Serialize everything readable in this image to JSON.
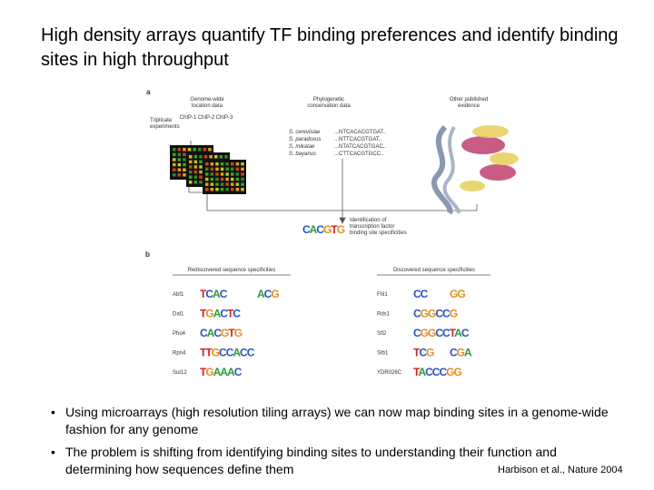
{
  "title": "High density arrays quantify TF binding preferences and identify binding sites in high throughput",
  "figure": {
    "panel_a": {
      "label": "a",
      "location_header": [
        "Genome-wide",
        "location data"
      ],
      "conservation_header": [
        "Phylogenetic",
        "conservation data"
      ],
      "evidence_header": [
        "Other published",
        "evidence"
      ],
      "triplicate": [
        "Triplicate",
        "experiments"
      ],
      "chips": [
        "ChIP-1",
        "ChIP-2",
        "ChIP-3"
      ],
      "species": [
        "S. cerevisiae",
        "S. paradoxus",
        "S. mikatae",
        "S. bayanus"
      ],
      "sequences": [
        "...NTCACACGTGAT..",
        "...NTTCACGTGAT..",
        "...NTATCACGTGAC..",
        "...CTTCACGTGCC.."
      ],
      "identification": [
        "Identification of",
        "transcription factor",
        "binding site specificities"
      ],
      "logo": "CACGTG"
    },
    "panel_b": {
      "label": "b",
      "rediscovered_header": "Rediscovered sequence specificities",
      "discovered_header": "Discovered sequence specificities",
      "rediscovered": [
        {
          "name": "Abf1",
          "logos": [
            "TCAC",
            "ACG"
          ]
        },
        {
          "name": "Dal1",
          "logos": [
            "TGACTC"
          ]
        },
        {
          "name": "Pho4",
          "logos": [
            "CACGTG"
          ]
        },
        {
          "name": "Rpn4",
          "logos": [
            "TTGCCACC"
          ]
        },
        {
          "name": "Sut12",
          "logos": [
            "TGAAAC"
          ]
        }
      ],
      "discovered": [
        {
          "name": "Fhl1",
          "logos": [
            "CC",
            "GG"
          ]
        },
        {
          "name": "Rds1",
          "logos": [
            "CGGCCG"
          ]
        },
        {
          "name": "Sfl2",
          "logos": [
            "CGGCCTAC"
          ]
        },
        {
          "name": "Stb1",
          "logos": [
            "TCG",
            "CGA"
          ]
        },
        {
          "name": "YDR026C",
          "logos": [
            "TACCCGG"
          ]
        }
      ]
    }
  },
  "bullets": [
    "Using microarrays (high resolution tiling arrays)  we can now map binding sites in a genome-wide fashion for any genome",
    "The problem is shifting from identifying binding sites to understanding their function and determining how sequences define them"
  ],
  "citation": "Harbison et al., Nature 2004"
}
